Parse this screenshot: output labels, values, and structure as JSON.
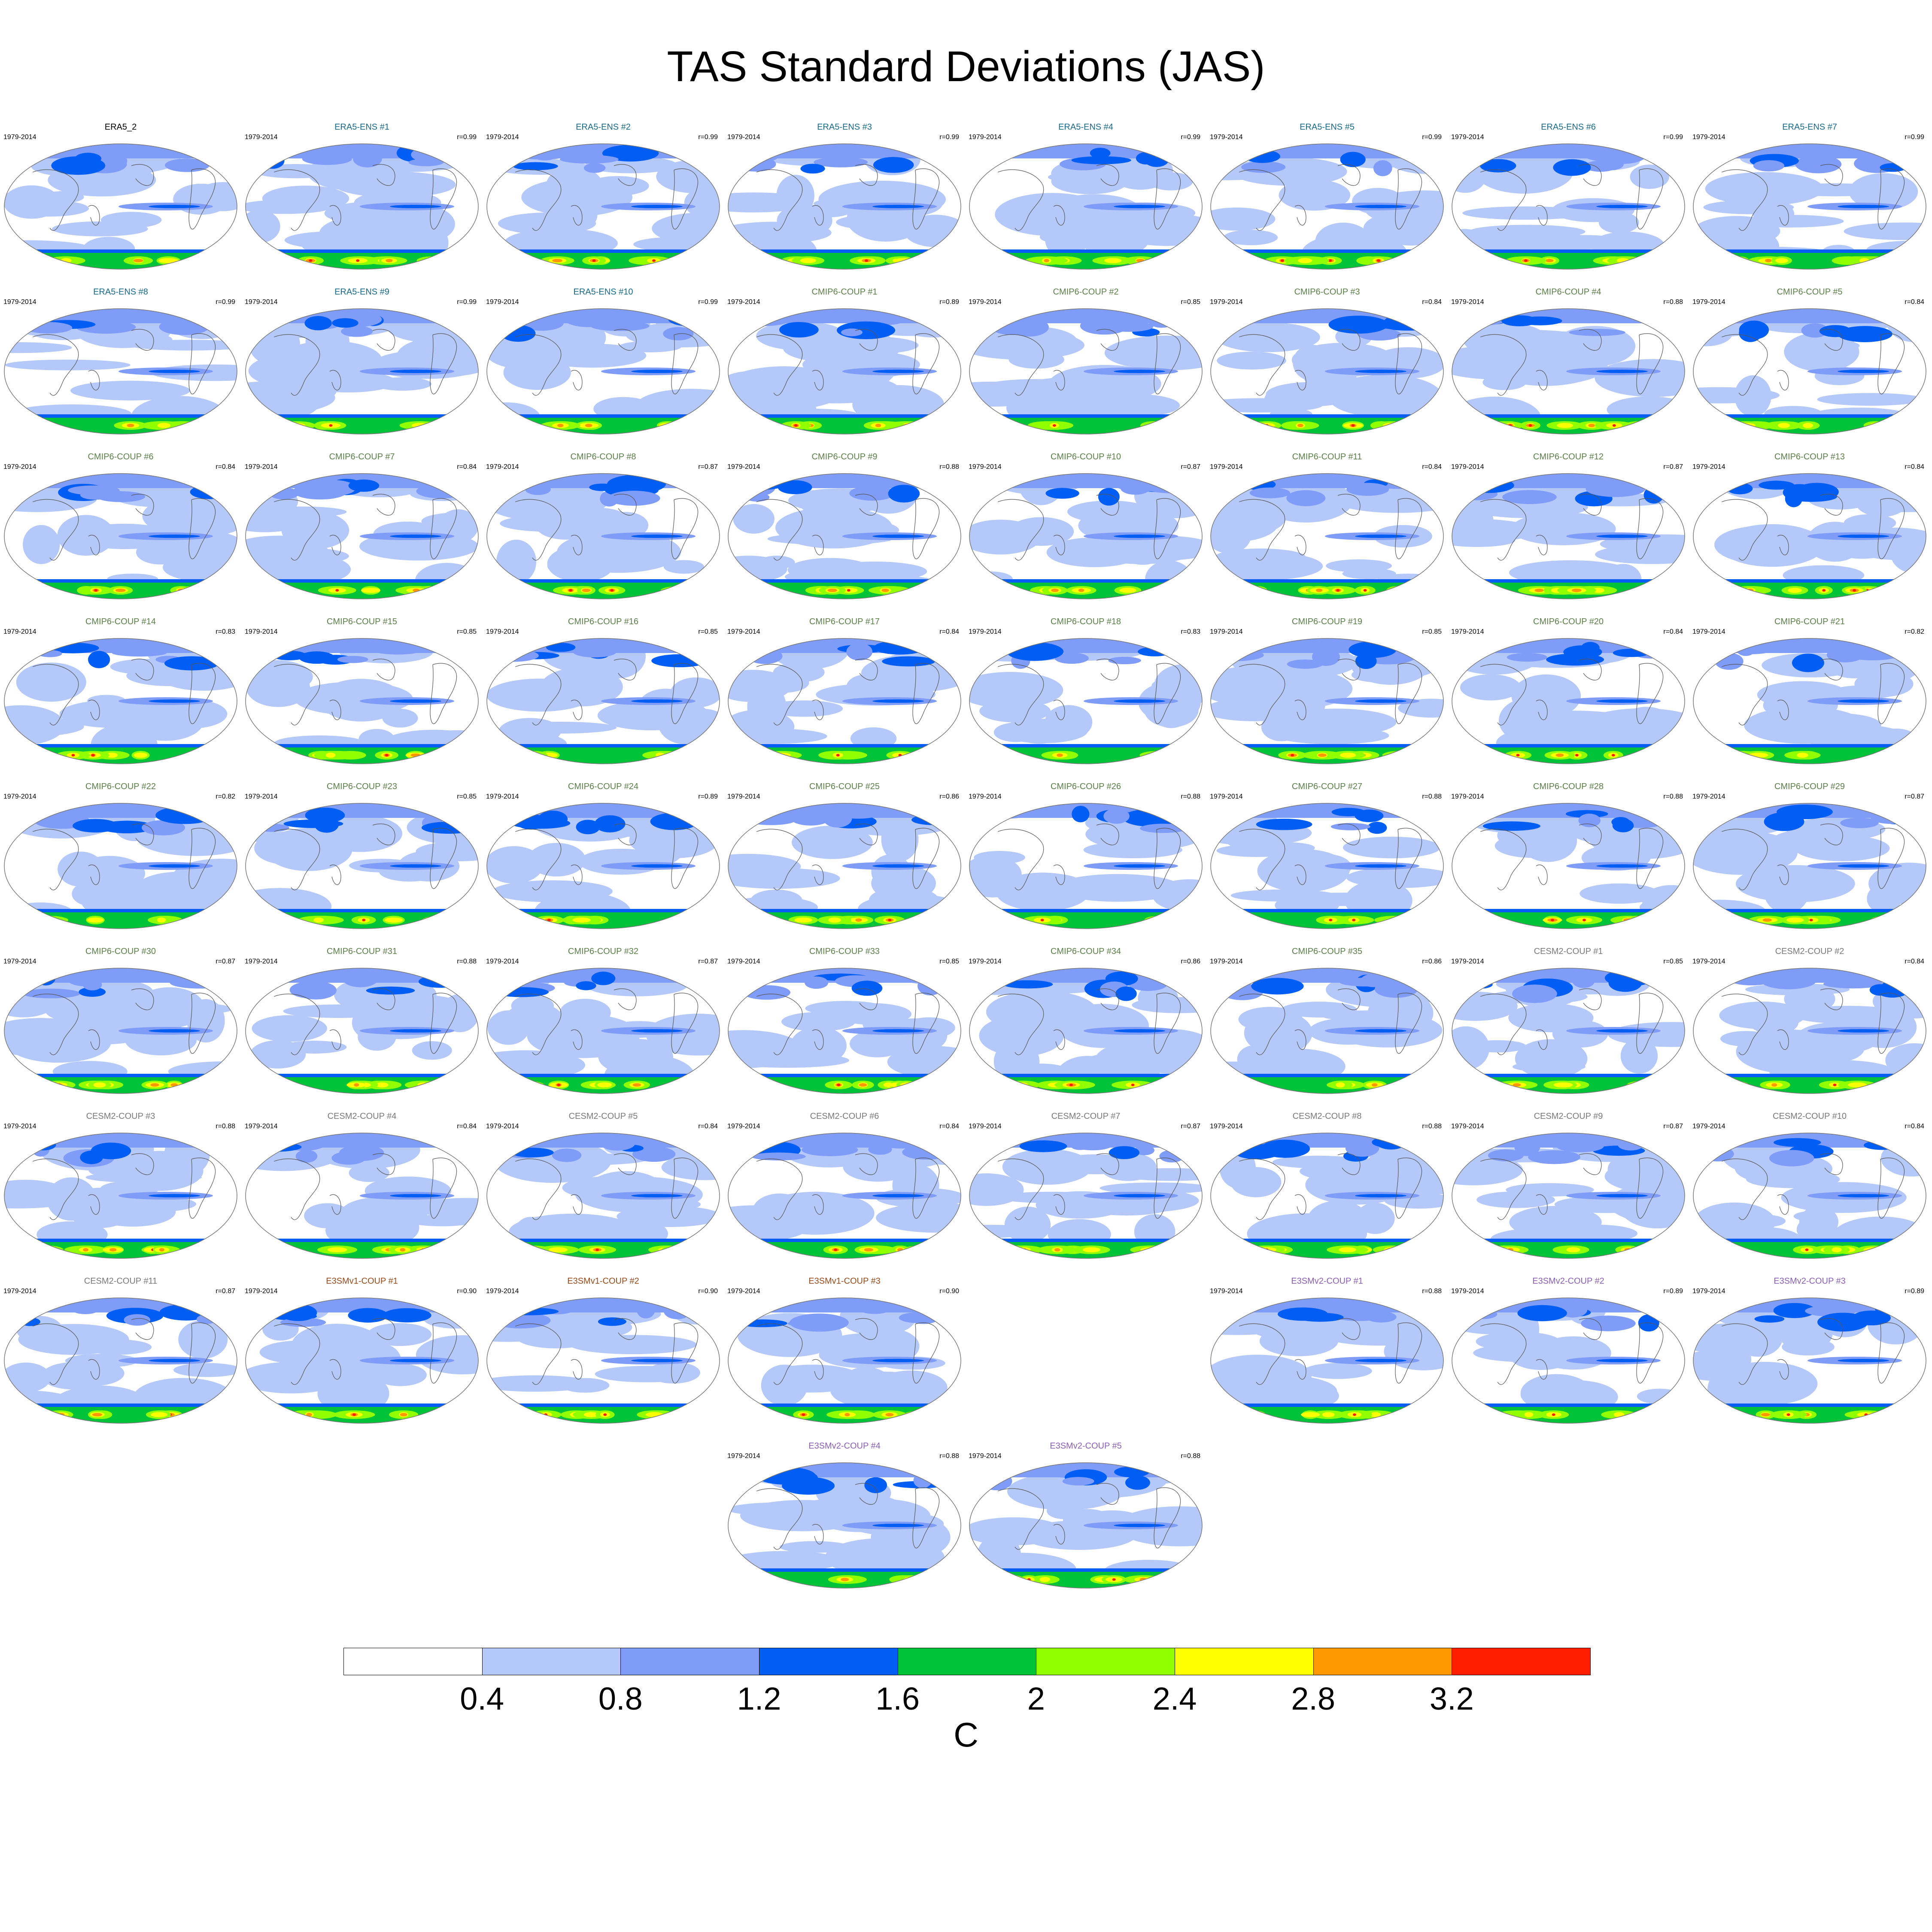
{
  "title": "TAS Standard Deviations (JAS)",
  "colors": {
    "era5": "#1a6a8a",
    "cmip6": "#5c7f4a",
    "cesm2": "#7a7a7a",
    "e3smv1": "#9a4a1a",
    "e3smv2": "#8a5fb8",
    "ref": "#000000"
  },
  "colorbar": {
    "unit": "C",
    "tick_labels": [
      "0.4",
      "0.8",
      "1.2",
      "1.6",
      "2",
      "2.4",
      "2.8",
      "3.2"
    ],
    "levels": [
      0.4,
      0.8,
      1.2,
      1.6,
      2.0,
      2.4,
      2.8,
      3.2
    ],
    "fill_colors": [
      "#ffffff",
      "#b4c8fa",
      "#7f9cf8",
      "#005ef5",
      "#00c33a",
      "#92ff00",
      "#ffff00",
      "#ff9800",
      "#ff1e00"
    ]
  },
  "panels": [
    {
      "title": "ERA5_2",
      "group": "ref",
      "period": "1979-2014",
      "corr": ""
    },
    {
      "title": "ERA5-ENS   #1",
      "group": "era5",
      "period": "1979-2014",
      "corr": "r=0.99"
    },
    {
      "title": "ERA5-ENS   #2",
      "group": "era5",
      "period": "1979-2014",
      "corr": "r=0.99"
    },
    {
      "title": "ERA5-ENS   #3",
      "group": "era5",
      "period": "1979-2014",
      "corr": "r=0.99"
    },
    {
      "title": "ERA5-ENS   #4",
      "group": "era5",
      "period": "1979-2014",
      "corr": "r=0.99"
    },
    {
      "title": "ERA5-ENS   #5",
      "group": "era5",
      "period": "1979-2014",
      "corr": "r=0.99"
    },
    {
      "title": "ERA5-ENS   #6",
      "group": "era5",
      "period": "1979-2014",
      "corr": "r=0.99"
    },
    {
      "title": "ERA5-ENS   #7",
      "group": "era5",
      "period": "1979-2014",
      "corr": "r=0.99"
    },
    {
      "title": "ERA5-ENS   #8",
      "group": "era5",
      "period": "1979-2014",
      "corr": "r=0.99"
    },
    {
      "title": "ERA5-ENS   #9",
      "group": "era5",
      "period": "1979-2014",
      "corr": "r=0.99"
    },
    {
      "title": "ERA5-ENS   #10",
      "group": "era5",
      "period": "1979-2014",
      "corr": "r=0.99"
    },
    {
      "title": "CMIP6-COUP  #1",
      "group": "cmip6",
      "period": "1979-2014",
      "corr": "r=0.89"
    },
    {
      "title": "CMIP6-COUP  #2",
      "group": "cmip6",
      "period": "1979-2014",
      "corr": "r=0.85"
    },
    {
      "title": "CMIP6-COUP  #3",
      "group": "cmip6",
      "period": "1979-2014",
      "corr": "r=0.84"
    },
    {
      "title": "CMIP6-COUP  #4",
      "group": "cmip6",
      "period": "1979-2014",
      "corr": "r=0.88"
    },
    {
      "title": "CMIP6-COUP  #5",
      "group": "cmip6",
      "period": "1979-2014",
      "corr": "r=0.84"
    },
    {
      "title": "CMIP6-COUP  #6",
      "group": "cmip6",
      "period": "1979-2014",
      "corr": "r=0.84"
    },
    {
      "title": "CMIP6-COUP  #7",
      "group": "cmip6",
      "period": "1979-2014",
      "corr": "r=0.84"
    },
    {
      "title": "CMIP6-COUP  #8",
      "group": "cmip6",
      "period": "1979-2014",
      "corr": "r=0.87"
    },
    {
      "title": "CMIP6-COUP  #9",
      "group": "cmip6",
      "period": "1979-2014",
      "corr": "r=0.88"
    },
    {
      "title": "CMIP6-COUP  #10",
      "group": "cmip6",
      "period": "1979-2014",
      "corr": "r=0.87"
    },
    {
      "title": "CMIP6-COUP  #11",
      "group": "cmip6",
      "period": "1979-2014",
      "corr": "r=0.84"
    },
    {
      "title": "CMIP6-COUP  #12",
      "group": "cmip6",
      "period": "1979-2014",
      "corr": "r=0.87"
    },
    {
      "title": "CMIP6-COUP  #13",
      "group": "cmip6",
      "period": "1979-2014",
      "corr": "r=0.84"
    },
    {
      "title": "CMIP6-COUP  #14",
      "group": "cmip6",
      "period": "1979-2014",
      "corr": "r=0.83"
    },
    {
      "title": "CMIP6-COUP  #15",
      "group": "cmip6",
      "period": "1979-2014",
      "corr": "r=0.85"
    },
    {
      "title": "CMIP6-COUP  #16",
      "group": "cmip6",
      "period": "1979-2014",
      "corr": "r=0.85"
    },
    {
      "title": "CMIP6-COUP  #17",
      "group": "cmip6",
      "period": "1979-2014",
      "corr": "r=0.84"
    },
    {
      "title": "CMIP6-COUP  #18",
      "group": "cmip6",
      "period": "1979-2014",
      "corr": "r=0.83"
    },
    {
      "title": "CMIP6-COUP  #19",
      "group": "cmip6",
      "period": "1979-2014",
      "corr": "r=0.85"
    },
    {
      "title": "CMIP6-COUP  #20",
      "group": "cmip6",
      "period": "1979-2014",
      "corr": "r=0.84"
    },
    {
      "title": "CMIP6-COUP  #21",
      "group": "cmip6",
      "period": "1979-2014",
      "corr": "r=0.82"
    },
    {
      "title": "CMIP6-COUP  #22",
      "group": "cmip6",
      "period": "1979-2014",
      "corr": "r=0.82"
    },
    {
      "title": "CMIP6-COUP  #23",
      "group": "cmip6",
      "period": "1979-2014",
      "corr": "r=0.85"
    },
    {
      "title": "CMIP6-COUP  #24",
      "group": "cmip6",
      "period": "1979-2014",
      "corr": "r=0.89"
    },
    {
      "title": "CMIP6-COUP  #25",
      "group": "cmip6",
      "period": "1979-2014",
      "corr": "r=0.86"
    },
    {
      "title": "CMIP6-COUP  #26",
      "group": "cmip6",
      "period": "1979-2014",
      "corr": "r=0.88"
    },
    {
      "title": "CMIP6-COUP  #27",
      "group": "cmip6",
      "period": "1979-2014",
      "corr": "r=0.88"
    },
    {
      "title": "CMIP6-COUP  #28",
      "group": "cmip6",
      "period": "1979-2014",
      "corr": "r=0.88"
    },
    {
      "title": "CMIP6-COUP  #29",
      "group": "cmip6",
      "period": "1979-2014",
      "corr": "r=0.87"
    },
    {
      "title": "CMIP6-COUP  #30",
      "group": "cmip6",
      "period": "1979-2014",
      "corr": "r=0.87"
    },
    {
      "title": "CMIP6-COUP  #31",
      "group": "cmip6",
      "period": "1979-2014",
      "corr": "r=0.88"
    },
    {
      "title": "CMIP6-COUP  #32",
      "group": "cmip6",
      "period": "1979-2014",
      "corr": "r=0.87"
    },
    {
      "title": "CMIP6-COUP  #33",
      "group": "cmip6",
      "period": "1979-2014",
      "corr": "r=0.85"
    },
    {
      "title": "CMIP6-COUP  #34",
      "group": "cmip6",
      "period": "1979-2014",
      "corr": "r=0.86"
    },
    {
      "title": "CMIP6-COUP  #35",
      "group": "cmip6",
      "period": "1979-2014",
      "corr": "r=0.86"
    },
    {
      "title": "CESM2-COUP  #1",
      "group": "cesm2",
      "period": "1979-2014",
      "corr": "r=0.85"
    },
    {
      "title": "CESM2-COUP  #2",
      "group": "cesm2",
      "period": "1979-2014",
      "corr": "r=0.84"
    },
    {
      "title": "CESM2-COUP  #3",
      "group": "cesm2",
      "period": "1979-2014",
      "corr": "r=0.88"
    },
    {
      "title": "CESM2-COUP  #4",
      "group": "cesm2",
      "period": "1979-2014",
      "corr": "r=0.84"
    },
    {
      "title": "CESM2-COUP  #5",
      "group": "cesm2",
      "period": "1979-2014",
      "corr": "r=0.84"
    },
    {
      "title": "CESM2-COUP  #6",
      "group": "cesm2",
      "period": "1979-2014",
      "corr": "r=0.84"
    },
    {
      "title": "CESM2-COUP  #7",
      "group": "cesm2",
      "period": "1979-2014",
      "corr": "r=0.87"
    },
    {
      "title": "CESM2-COUP  #8",
      "group": "cesm2",
      "period": "1979-2014",
      "corr": "r=0.88"
    },
    {
      "title": "CESM2-COUP  #9",
      "group": "cesm2",
      "period": "1979-2014",
      "corr": "r=0.87"
    },
    {
      "title": "CESM2-COUP  #10",
      "group": "cesm2",
      "period": "1979-2014",
      "corr": "r=0.84"
    },
    {
      "title": "CESM2-COUP  #11",
      "group": "cesm2",
      "period": "1979-2014",
      "corr": "r=0.87"
    },
    {
      "title": "E3SMv1-COUP #1",
      "group": "e3smv1",
      "period": "1979-2014",
      "corr": "r=0.90"
    },
    {
      "title": "E3SMv1-COUP #2",
      "group": "e3smv1",
      "period": "1979-2014",
      "corr": "r=0.90"
    },
    {
      "title": "E3SMv1-COUP #3",
      "group": "e3smv1",
      "period": "1979-2014",
      "corr": "r=0.90"
    },
    null,
    {
      "title": "E3SMv2-COUP #1",
      "group": "e3smv2",
      "period": "1979-2014",
      "corr": "r=0.88"
    },
    {
      "title": "E3SMv2-COUP #2",
      "group": "e3smv2",
      "period": "1979-2014",
      "corr": "r=0.89"
    },
    {
      "title": "E3SMv2-COUP #3",
      "group": "e3smv2",
      "period": "1979-2014",
      "corr": "r=0.89"
    },
    null,
    null,
    null,
    {
      "title": "E3SMv2-COUP #4",
      "group": "e3smv2",
      "period": "1979-2014",
      "corr": "r=0.88"
    },
    {
      "title": "E3SMv2-COUP #5",
      "group": "e3smv2",
      "period": "1979-2014",
      "corr": "r=0.88"
    }
  ]
}
